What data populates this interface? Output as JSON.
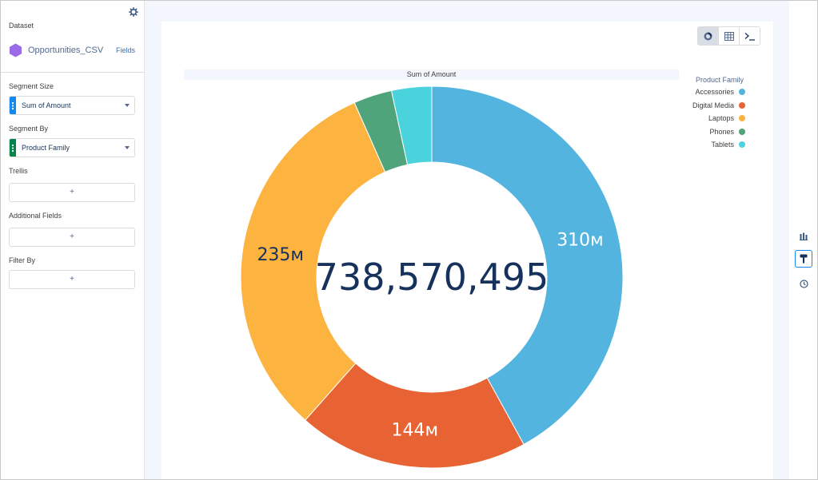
{
  "sidebar": {
    "dataset_label": "Dataset",
    "dataset_name": "Opportunities_CSV",
    "fields_link": "Fields",
    "segment_size_label": "Segment Size",
    "segment_size_value": "Sum of Amount",
    "segment_by_label": "Segment By",
    "segment_by_value": "Product Family",
    "trellis_label": "Trellis",
    "additional_fields_label": "Additional Fields",
    "filter_by_label": "Filter By",
    "add_symbol": "+"
  },
  "colors": {
    "accent": "#1589ee",
    "measure_pill": "#1589ee",
    "dimension_pill": "#04844b",
    "dataset_icon": "#9a6ae8"
  },
  "view_toggle": {
    "icons": [
      "donut-chart-icon",
      "table-icon",
      "query-editor-icon"
    ],
    "active": "donut-chart-icon"
  },
  "right_strip": {
    "icons": [
      "bar-chart-icon",
      "paint-format-icon",
      "history-icon"
    ],
    "active": "paint-format-icon"
  },
  "chart_data": {
    "type": "pie",
    "title": "Sum of Amount",
    "center_total": "738,570,495",
    "legend_title": "Product Family",
    "legend_position": "top-right",
    "categories": [
      "Accessories",
      "Digital Media",
      "Laptops",
      "Phones",
      "Tablets"
    ],
    "values": [
      310000000,
      144000000,
      235000000,
      24000000,
      25000000
    ],
    "labels": [
      "310м",
      "144м",
      "235м",
      "",
      ""
    ],
    "colors": [
      "#52b4df",
      "#e76333",
      "#fdb33f",
      "#4fa47b",
      "#4ad3dc"
    ]
  }
}
